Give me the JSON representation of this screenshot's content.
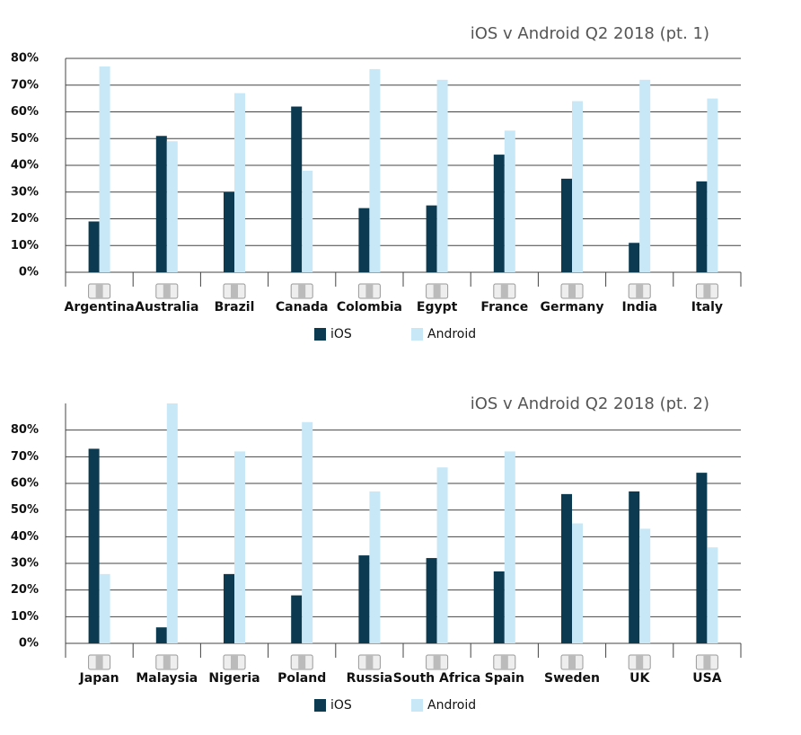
{
  "chart_data": [
    {
      "type": "bar",
      "title": "iOS v Android Q2 2018  (pt. 1)",
      "categories": [
        "Argentina",
        "Australia",
        "Brazil",
        "Canada",
        "Colombia",
        "Egypt",
        "France",
        "Germany",
        "India",
        "Italy"
      ],
      "series": [
        {
          "name": "iOS",
          "color": "#0c3a50",
          "values": [
            19,
            51,
            30,
            62,
            24,
            25,
            44,
            35,
            11,
            34
          ]
        },
        {
          "name": "Android",
          "color": "#c8e8f7",
          "values": [
            77,
            49,
            67,
            38,
            76,
            72,
            53,
            64,
            72,
            65
          ]
        }
      ],
      "ylim": [
        0,
        80
      ],
      "yticks": [
        {
          "value": 0,
          "label": "0%"
        },
        {
          "value": 10,
          "label": "10%"
        },
        {
          "value": 20,
          "label": "20%"
        },
        {
          "value": 30,
          "label": "30%"
        },
        {
          "value": 40,
          "label": "40%"
        },
        {
          "value": 50,
          "label": "50%"
        },
        {
          "value": 60,
          "label": "60%"
        },
        {
          "value": 70,
          "label": "70%"
        },
        {
          "value": 80,
          "label": "80%"
        }
      ],
      "grid": true
    },
    {
      "type": "bar",
      "title": "iOS v Android Q2 2018 (pt. 2)",
      "categories": [
        "Japan",
        "Malaysia",
        "Nigeria",
        "Poland",
        "Russia",
        "South Africa",
        "Spain",
        "Sweden",
        "UK",
        "USA"
      ],
      "series": [
        {
          "name": "iOS",
          "color": "#0c3a50",
          "values": [
            73,
            6,
            26,
            18,
            33,
            32,
            27,
            56,
            57,
            64
          ]
        },
        {
          "name": "Android",
          "color": "#c8e8f7",
          "values": [
            26,
            90,
            72,
            83,
            57,
            66,
            72,
            45,
            43,
            36
          ]
        }
      ],
      "ylim": [
        0,
        90
      ],
      "yticks": [
        {
          "value": 0,
          "label": "0%"
        },
        {
          "value": 10,
          "label": "10%"
        },
        {
          "value": 20,
          "label": "20%"
        },
        {
          "value": 30,
          "label": "30%"
        },
        {
          "value": 40,
          "label": "40%"
        },
        {
          "value": 50,
          "label": "50%"
        },
        {
          "value": 60,
          "label": "60%"
        },
        {
          "value": 70,
          "label": "70%"
        },
        {
          "value": 80,
          "label": "80%"
        }
      ],
      "grid": true
    }
  ]
}
